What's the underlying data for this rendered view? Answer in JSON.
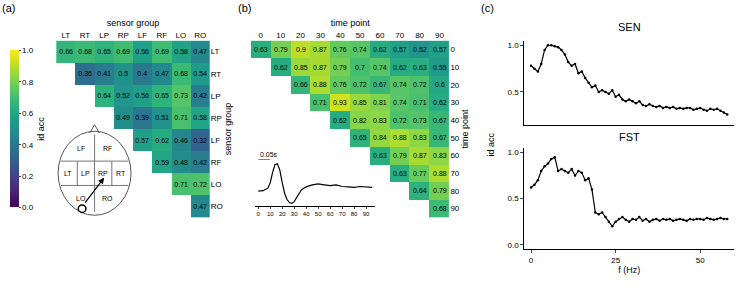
{
  "chart_data": [
    {
      "type": "heatmap",
      "panel": "(a)",
      "xlabel": "sensor group",
      "ylabel": "sensor group",
      "categories": [
        "LT",
        "RT",
        "LP",
        "RP",
        "LF",
        "RF",
        "LO",
        "RO"
      ],
      "cells": [
        [
          0.66,
          0.68,
          0.65,
          0.69,
          0.56,
          0.69,
          0.58,
          0.47
        ],
        [
          null,
          0.36,
          0.41,
          0.5,
          0.4,
          0.47,
          0.68,
          0.54
        ],
        [
          null,
          null,
          0.64,
          0.52,
          0.56,
          0.65,
          0.73,
          0.42
        ],
        [
          null,
          null,
          null,
          0.49,
          0.39,
          0.51,
          0.71,
          0.58
        ],
        [
          null,
          null,
          null,
          null,
          0.57,
          0.62,
          0.46,
          0.32
        ],
        [
          null,
          null,
          null,
          null,
          null,
          0.59,
          0.48,
          0.42
        ],
        [
          null,
          null,
          null,
          null,
          null,
          null,
          0.71,
          0.72
        ],
        [
          null,
          null,
          null,
          null,
          null,
          null,
          null,
          0.47
        ]
      ],
      "data_labels": true,
      "color_range": [
        0,
        1
      ],
      "color_ticks": [
        {
          "value": 0,
          "label": "0.0"
        },
        0.2,
        0.4,
        0.6,
        0.8,
        {
          "value": 1,
          "label": "1.0"
        }
      ],
      "colorbar_title": "id acc",
      "inset": {
        "type": "diagram",
        "regions": [
          "LF",
          "RF",
          "LT",
          "LP",
          "RP",
          "RT",
          "LO",
          "RO"
        ],
        "pair": [
          "LO",
          "RP"
        ]
      }
    },
    {
      "type": "heatmap",
      "panel": "(b)",
      "xlabel": "time point",
      "ylabel": "time point",
      "x": [
        0,
        10,
        20,
        30,
        40,
        50,
        60,
        70,
        80,
        90
      ],
      "cells": [
        [
          0.63,
          0.79,
          0.9,
          0.87,
          0.76,
          0.74,
          0.62,
          0.57,
          0.52,
          0.57
        ],
        [
          null,
          0.62,
          0.85,
          0.87,
          0.79,
          0.7,
          0.74,
          0.62,
          0.63,
          0.55
        ],
        [
          null,
          null,
          0.66,
          0.88,
          0.76,
          0.72,
          0.67,
          0.74,
          0.72,
          0.6
        ],
        [
          null,
          null,
          null,
          0.71,
          0.93,
          0.85,
          0.81,
          0.74,
          0.71,
          0.62
        ],
        [
          null,
          null,
          null,
          null,
          0.62,
          0.82,
          0.83,
          0.72,
          0.73,
          0.67
        ],
        [
          null,
          null,
          null,
          null,
          null,
          0.65,
          0.84,
          0.88,
          0.83,
          0.67
        ],
        [
          null,
          null,
          null,
          null,
          null,
          null,
          0.63,
          0.79,
          0.87,
          0.83
        ],
        [
          null,
          null,
          null,
          null,
          null,
          null,
          null,
          0.63,
          0.77,
          0.88
        ],
        [
          null,
          null,
          null,
          null,
          null,
          null,
          null,
          null,
          0.64,
          0.79
        ],
        [
          null,
          null,
          null,
          null,
          null,
          null,
          null,
          null,
          null,
          0.68
        ]
      ],
      "data_labels": true,
      "color_range": [
        0,
        1
      ],
      "inset": {
        "type": "line",
        "color": "#000000",
        "scale_bar": "0.05s",
        "x": [
          0,
          4,
          8,
          10,
          12,
          14,
          16,
          18,
          20,
          22,
          24,
          26,
          28,
          30,
          32,
          34,
          36,
          38,
          40,
          45,
          50,
          55,
          60,
          65,
          70,
          75,
          80,
          85,
          90,
          95
        ],
        "values": [
          0.35,
          0.36,
          0.42,
          0.55,
          0.8,
          0.98,
          1.0,
          0.85,
          0.55,
          0.3,
          0.15,
          0.08,
          0.06,
          0.1,
          0.2,
          0.3,
          0.38,
          0.42,
          0.45,
          0.5,
          0.52,
          0.5,
          0.48,
          0.5,
          0.46,
          0.45,
          0.44,
          0.46,
          0.45,
          0.44
        ],
        "xlim": [
          -3,
          97
        ],
        "xticks": [
          0,
          10,
          20,
          30,
          40,
          50,
          60,
          70,
          80,
          90
        ],
        "ylim": [
          0,
          1.1
        ],
        "tick_labels": "x"
      }
    },
    {
      "type": "line",
      "panel": "(c)",
      "title": "SEN",
      "color": "#000000",
      "marker": "circle",
      "x": [
        0,
        1,
        2,
        3,
        4,
        5,
        6,
        7,
        8,
        9,
        10,
        11,
        12,
        13,
        14,
        15,
        16,
        17,
        18,
        19,
        20,
        21,
        22,
        23,
        24,
        25,
        26,
        27,
        28,
        29,
        30,
        31,
        32,
        33,
        34,
        35,
        36,
        37,
        38,
        39,
        40,
        41,
        42,
        43,
        44,
        45,
        46,
        47,
        48,
        49,
        50,
        51,
        52,
        53,
        54,
        55,
        56,
        57,
        58
      ],
      "values": [
        0.78,
        0.75,
        0.72,
        0.8,
        0.95,
        1.0,
        1.0,
        0.99,
        0.98,
        0.95,
        0.9,
        0.82,
        0.78,
        0.8,
        0.7,
        0.72,
        0.65,
        0.6,
        0.55,
        0.57,
        0.5,
        0.52,
        0.5,
        0.48,
        0.52,
        0.45,
        0.47,
        0.42,
        0.4,
        0.42,
        0.4,
        0.38,
        0.4,
        0.36,
        0.35,
        0.37,
        0.35,
        0.34,
        0.35,
        0.33,
        0.34,
        0.33,
        0.34,
        0.32,
        0.33,
        0.32,
        0.33,
        0.33,
        0.31,
        0.32,
        0.33,
        0.31,
        0.3,
        0.32,
        0.31,
        0.32,
        0.3,
        0.28,
        0.26
      ],
      "xlim": [
        -2,
        60
      ],
      "ylim": [
        0.15,
        1.05
      ],
      "yticks": [
        0.5,
        {
          "value": 1,
          "label": "1.0"
        }
      ],
      "tick_labels": "y"
    },
    {
      "type": "line",
      "title": "FST",
      "xlabel": "f (Hz)",
      "ylabel": "id acc",
      "color": "#000000",
      "marker": "circle",
      "x": [
        0,
        1,
        2,
        3,
        4,
        5,
        6,
        7,
        8,
        9,
        10,
        11,
        12,
        13,
        14,
        15,
        16,
        17,
        18,
        19,
        20,
        21,
        22,
        23,
        24,
        25,
        26,
        27,
        28,
        29,
        30,
        31,
        32,
        33,
        34,
        35,
        36,
        37,
        38,
        39,
        40,
        41,
        42,
        43,
        44,
        45,
        46,
        47,
        48,
        49,
        50,
        51,
        52,
        53,
        54,
        55,
        56,
        57,
        58
      ],
      "values": [
        0.62,
        0.65,
        0.7,
        0.8,
        0.85,
        0.88,
        0.93,
        0.95,
        0.8,
        0.82,
        0.8,
        0.78,
        0.82,
        0.75,
        0.8,
        0.78,
        0.7,
        0.72,
        0.6,
        0.35,
        0.33,
        0.35,
        0.3,
        0.25,
        0.2,
        0.25,
        0.28,
        0.3,
        0.27,
        0.25,
        0.28,
        0.27,
        0.3,
        0.26,
        0.28,
        0.25,
        0.27,
        0.28,
        0.26,
        0.28,
        0.27,
        0.28,
        0.26,
        0.27,
        0.28,
        0.27,
        0.26,
        0.28,
        0.27,
        0.28,
        0.28,
        0.27,
        0.29,
        0.28,
        0.27,
        0.28,
        0.29,
        0.28,
        0.28
      ],
      "xlim": [
        -2,
        60
      ],
      "xticks": [
        0,
        25,
        50
      ],
      "ylim": [
        -0.05,
        1.05
      ],
      "yticks": [
        {
          "value": 0,
          "label": "0.0"
        },
        0.5,
        {
          "value": 1,
          "label": "1.0"
        }
      ]
    }
  ]
}
